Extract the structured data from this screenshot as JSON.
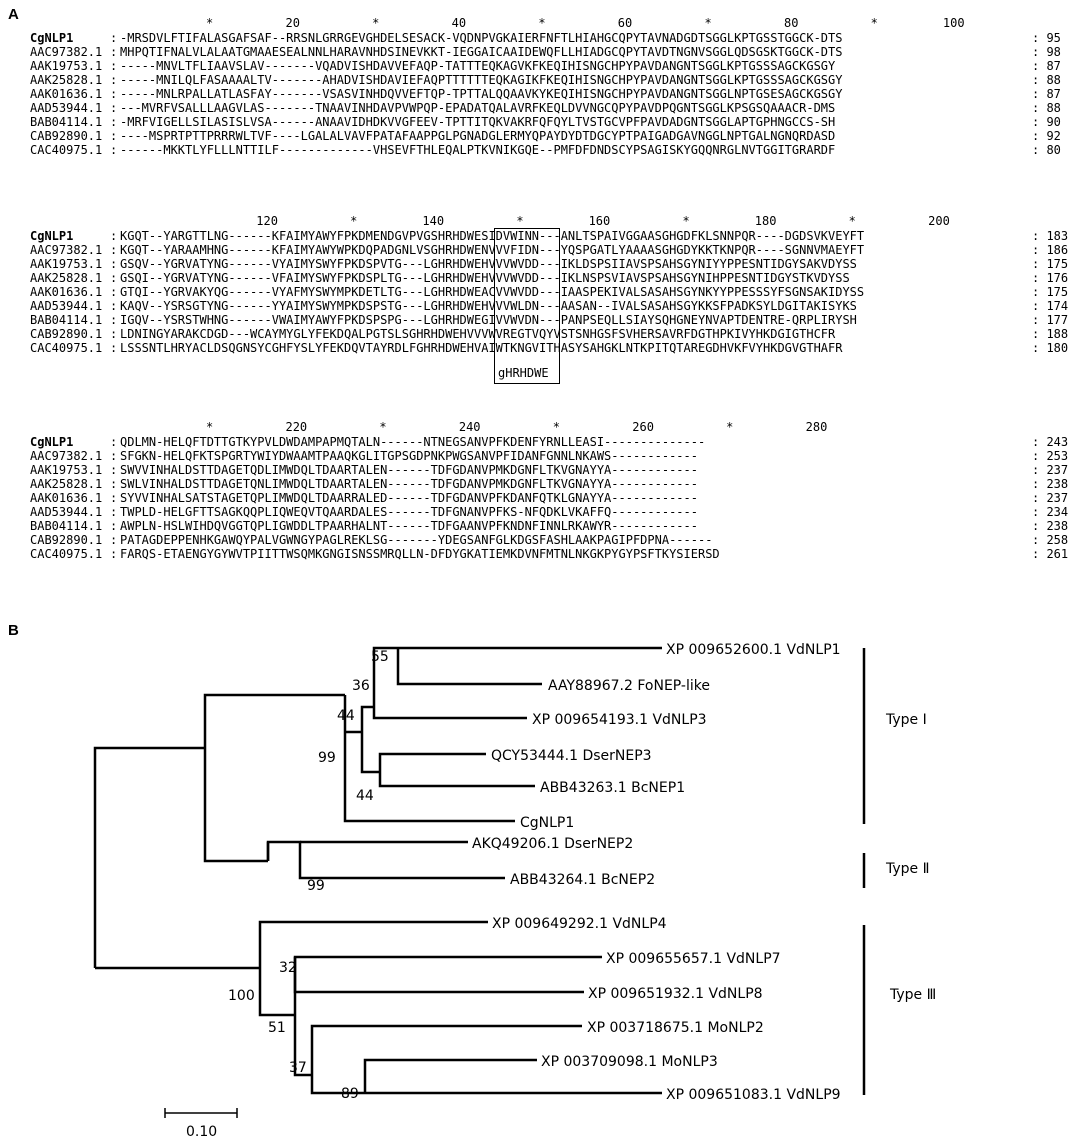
{
  "panelA": "A",
  "panelB": "B",
  "alignment": {
    "blocks": [
      {
        "ruler": "*          20          *          40          *          60          *          80          *         100",
        "rows": [
          {
            "name": "CgNLP1",
            "seq": "-MRSDVLFTIFALASGAFSAF--RRSNLGRRGEVGHDELSESACK-VQDNPVGKAIERFNFTLHIAHGCQPYTAVNADGDTSGGLKPTGSSTGGCK-DTS",
            "end": "95",
            "bold": true
          },
          {
            "name": "AAC97382.1",
            "seq": "MHPQTIFNALVLALAATGMAAESEALNNLHARAVNHDSINEVKKT-IEGGAICAAIDEWQFLLHIADGCQPYTAVDTNGNVSGGLQDSGSKTGGCK-DTS",
            "end": "98"
          },
          {
            "name": "AAK19753.1",
            "seq": "-----MNVLTFLIAAVSLAV-------VQADVISHDAVVEFAQP-TATTTEQKAGVKFKEQIHISNGCHPYPAVDANGNTSGGLKPTGSSSAGCKGSGY",
            "end": "87"
          },
          {
            "name": "AAK25828.1",
            "seq": "-----MNILQLFASAAAALTV-------AHADVISHDAVIEFAQPTTTTTTEQKAGIKFKEQIHISNGCHPYPAVDANGNTSGGLKPTGSSSAGCKGSGY",
            "end": "88"
          },
          {
            "name": "AAK01636.1",
            "seq": "-----MNLRPALLATLASFAY-------VSASVINHDQVVEFTQP-TPTTALQQAAVKYKEQIHISNGCHPYPAVDANGNTSGGLNPTGSESAGCKGSGY",
            "end": "87"
          },
          {
            "name": "AAD53944.1",
            "seq": "---MVRFVSALLLAAGVLAS-------TNAAVINHDAVPVWPQP-EPADATQALAVRFKEQLDVVNGCQPYPAVDPQGNTSGGLKPSGSQAAACR-DMS",
            "end": "88"
          },
          {
            "name": "BAB04114.1",
            "seq": "-MRFVIGELLSILASISLVSA------ANAAVIDHDKVVGFEEV-TPTTITQKVAKRFQFQYLTVSTGCVPFPAVDADGNTSGGLAPTGPHNGCCS-SH",
            "end": "90"
          },
          {
            "name": "CAB92890.1",
            "seq": "----MSPRTPTTPRRRWLTVF----LGALALVAVFPATAFAAPPGLPGNADGLERMYQPAYDYDTDGCYPTPAIGADGAVNGGLNPTGALNGNQRDASD",
            "end": "92"
          },
          {
            "name": "CAC40975.1",
            "seq": "------MKKTLYFLLLNTTILF-------------VHSEVFTHLEQALPTKVNIKGQE--PMFDFDNDSCYPSAGISKYGQQNRGLNVTGGITGRARDF",
            "end": "80"
          }
        ]
      },
      {
        "ruler": "          120          *         140          *         160          *         180          *          200",
        "rows": [
          {
            "name": "CgNLP1",
            "seq": "KGQT--YARGTTLNG------KFAIMYAWYFPKDMENDGVPVGSHRHDWESIDVWINN---ANLTSPAIVGGAASGHGDFKLSNNPQR----DGDSVKVEYFT",
            "end": "183",
            "bold": true
          },
          {
            "name": "AAC97382.1",
            "seq": "KGQT--YARAAMHNG------KFAIMYAWYWPKDQPADGNLVSGHRHDWENVVVFIDN---YQSPGATLYAAAASGHGDYKKTKNPQR----SGNNVMAEYFT",
            "end": "186"
          },
          {
            "name": "AAK19753.1",
            "seq": "GSQV--YGRVATYNG------VYAIMYSWYFPKDSPVTG---LGHRHDWEHVVVWVDD---IKLDSPSIIAVSPSAHSGYNIYYPPESNTIDGYSAKVDYSS",
            "end": "175"
          },
          {
            "name": "AAK25828.1",
            "seq": "GSQI--YGRVATYNG------VFAIMYSWYFPKDSPLTG---LGHRHDWEHVVVWVDD---IKLNSPSVIAVSPSAHSGYNIHPPESNTIDGYSTKVDYSS",
            "end": "176"
          },
          {
            "name": "AAK01636.1",
            "seq": "GTQI--YGRVAKYQG------VYAFMYSWYMPKDETLTG---LGHRHDWEACVVWVDD---IAASPEKIVALSASAHSGYNKYYPPESSSYFSGNSAKIDYSS",
            "end": "175"
          },
          {
            "name": "AAD53944.1",
            "seq": "KAQV--YSRSGTYNG------YYAIMYSWYMPKDSPSTG---LGHRHDWEHVVVWLDN---AASAN--IVALSASAHSGYKKSFPADKSYLDGITAKISYKS",
            "end": "174"
          },
          {
            "name": "BAB04114.1",
            "seq": "IGQV--YSRSTWHNG------VWAIMYAWYFPKDSPSPG---LGHRHDWEGIVVWVDN---PANPSEQLLSIAYSQHGNEYNVAPTDENTRE-QRPLIRYSH",
            "end": "177"
          },
          {
            "name": "CAB92890.1",
            "seq": "LDNINGYARAKCDGD---WCAYMYGLYFEKDQALPGTSLSGHRHDWEHVVVWVREGTVQYVSTSNHGSFSVHERSAVRFDGTHPKIVYHKDGIGTHCFR",
            "end": "188"
          },
          {
            "name": "CAC40975.1",
            "seq": "LSSSNTLHRYACLDSQGNSYCGHFYSLYFEKDQVTAYRDLFGHRHDWEHVAIWTKNGVITHASYSAHGKLNTKPITQTAREGDHVKFVYHKDGVGTHAFR",
            "end": "180"
          }
        ]
      },
      {
        "ruler": "*          220          *          240          *          260          *          280",
        "rows": [
          {
            "name": "CgNLP1",
            "seq": "QDLMN-HELQFTDTTGTKYPVLDWDAMPAPMQTALN------NTNEGSANVPFKDENFYRNLLEASI--------------",
            "end": "243",
            "bold": true
          },
          {
            "name": "AAC97382.1",
            "seq": "SFGKN-HELQFKTSPGRTYWIYDWAAMTPAAQKGLITGPSGDPNKPWGSANVPFIDANFGNNLNKAWS------------",
            "end": "253"
          },
          {
            "name": "AAK19753.1",
            "seq": "SWVVINHALDSTTDAGETQDLIMWDQLTDAARTALEN------TDFGDANVPMKDGNFLTKVGNAYYA------------",
            "end": "237"
          },
          {
            "name": "AAK25828.1",
            "seq": "SWLVINHALDSTTDAGETQNLIMWDQLTDAARTALEN------TDFGDANVPMKDGNFLTKVGNAYYA------------",
            "end": "238"
          },
          {
            "name": "AAK01636.1",
            "seq": "SYVVINHALSATSTAGETQPLIMWDQLTDAARRALED------TDFGDANVPFKDANFQTKLGNAYYA------------",
            "end": "237"
          },
          {
            "name": "AAD53944.1",
            "seq": "TWPLD-HELGFTTSAGKQQPLIQWEQVTQAARDALES------TDFGNANVPFKS-NFQDKLVKAFFQ------------",
            "end": "234"
          },
          {
            "name": "BAB04114.1",
            "seq": "AWPLN-HSLWIHDQVGGTQPLIGWDDLTPAARHALNT------TDFGAANVPFKNDNFINNLRKAWYR------------",
            "end": "238"
          },
          {
            "name": "CAB92890.1",
            "seq": "PATAGDEPPENHKGAWQYPALVGWNGYPAGLREKLSG-------YDEGSANFGLKDGSFASHLAAKPAGIPFDPNA------",
            "end": "258"
          },
          {
            "name": "CAC40975.1",
            "seq": "FARQS-ETAENGYGYWVTPIITTWSQMKGNGISNSSMRQLLN-DFDYGKATIEMKDVNFMTNLNKGKPYGYPSFTKYSIERSD",
            "end": "261"
          }
        ]
      }
    ],
    "motif_label": "gHRHDWE"
  },
  "tree": {
    "leaves": [
      {
        "label": "XP 009652600.1 VdNLP1"
      },
      {
        "label": "AAY88967.2 FoNEP-like"
      },
      {
        "label": "XP 009654193.1 VdNLP3"
      },
      {
        "label": "QCY53444.1 DserNEP3"
      },
      {
        "label": "ABB43263.1 BcNEP1"
      },
      {
        "label": "CgNLP1"
      },
      {
        "label": "AKQ49206.1 DserNEP2"
      },
      {
        "label": "ABB43264.1 BcNEP2"
      },
      {
        "label": "XP 009649292.1 VdNLP4"
      },
      {
        "label": "XP 009655657.1 VdNLP7"
      },
      {
        "label": "XP 009651932.1 VdNLP8"
      },
      {
        "label": "XP 003718675.1 MoNLP2"
      },
      {
        "label": "XP 003709098.1 MoNLP3"
      },
      {
        "label": "XP 009651083.1 VdNLP9"
      }
    ],
    "bootstraps": [
      "55",
      "36",
      "44",
      "99",
      "44",
      "99",
      "100",
      "32",
      "51",
      "37",
      "89"
    ],
    "groups": [
      "Type Ⅰ",
      "Type Ⅱ",
      "Type Ⅲ"
    ],
    "scale_label": "0.10"
  }
}
